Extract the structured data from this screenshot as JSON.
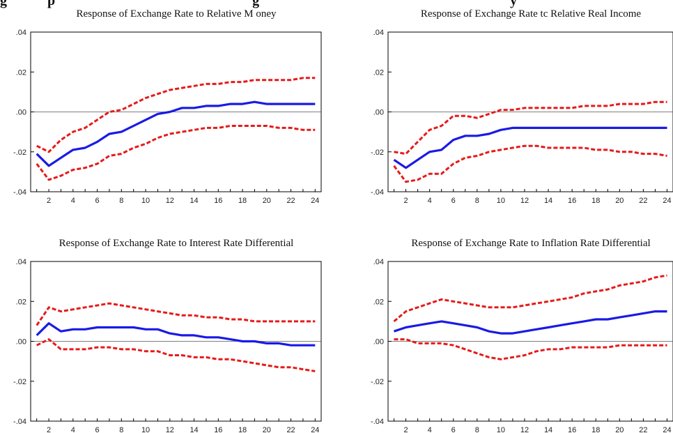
{
  "header": {
    "visible_fragment_left": "g",
    "visible_fragment_mid1": "p",
    "visible_fragment_mid2": "g",
    "visible_fragment_right": "y"
  },
  "chart_data": [
    {
      "type": "line",
      "title": "Response of Exchange Rate to Relative M oney",
      "x": [
        1,
        2,
        3,
        4,
        5,
        6,
        7,
        8,
        9,
        10,
        11,
        12,
        13,
        14,
        15,
        16,
        17,
        18,
        19,
        20,
        21,
        22,
        23,
        24
      ],
      "xticks": [
        2,
        4,
        6,
        8,
        10,
        12,
        14,
        16,
        18,
        20,
        22,
        24
      ],
      "ylim": [
        -0.04,
        0.04
      ],
      "yticks": [
        ".04",
        ".02",
        ".00",
        "-.02",
        "-.04"
      ],
      "series": [
        {
          "role": "response",
          "color": "#1a1ae6",
          "style": "solid",
          "values": [
            -0.021,
            -0.027,
            -0.023,
            -0.019,
            -0.018,
            -0.015,
            -0.011,
            -0.01,
            -0.007,
            -0.004,
            -0.001,
            0.0,
            0.002,
            0.002,
            0.003,
            0.003,
            0.004,
            0.004,
            0.005,
            0.004,
            0.004,
            0.004,
            0.004,
            0.004
          ]
        },
        {
          "role": "upper",
          "color": "#e61a1a",
          "style": "dashed",
          "values": [
            -0.017,
            -0.02,
            -0.014,
            -0.01,
            -0.008,
            -0.004,
            0.0,
            0.001,
            0.004,
            0.007,
            0.009,
            0.011,
            0.012,
            0.013,
            0.014,
            0.014,
            0.015,
            0.015,
            0.016,
            0.016,
            0.016,
            0.016,
            0.017,
            0.017
          ]
        },
        {
          "role": "lower",
          "color": "#e61a1a",
          "style": "dashed",
          "values": [
            -0.026,
            -0.034,
            -0.032,
            -0.029,
            -0.028,
            -0.026,
            -0.022,
            -0.021,
            -0.018,
            -0.016,
            -0.013,
            -0.011,
            -0.01,
            -0.009,
            -0.008,
            -0.008,
            -0.007,
            -0.007,
            -0.007,
            -0.007,
            -0.008,
            -0.008,
            -0.009,
            -0.009
          ]
        }
      ]
    },
    {
      "type": "line",
      "title": "Response of Exchange Rate tc Relative Real Income",
      "x": [
        1,
        2,
        3,
        4,
        5,
        6,
        7,
        8,
        9,
        10,
        11,
        12,
        13,
        14,
        15,
        16,
        17,
        18,
        19,
        20,
        21,
        22,
        23,
        24
      ],
      "xticks": [
        2,
        4,
        6,
        8,
        10,
        12,
        14,
        16,
        18,
        20,
        22,
        24
      ],
      "ylim": [
        -0.04,
        0.04
      ],
      "yticks": [
        ".04",
        ".02",
        ".00",
        "-.02",
        "-.04"
      ],
      "series": [
        {
          "role": "response",
          "color": "#1a1ae6",
          "style": "solid",
          "values": [
            -0.024,
            -0.028,
            -0.024,
            -0.02,
            -0.019,
            -0.014,
            -0.012,
            -0.012,
            -0.011,
            -0.009,
            -0.008,
            -0.008,
            -0.008,
            -0.008,
            -0.008,
            -0.008,
            -0.008,
            -0.008,
            -0.008,
            -0.008,
            -0.008,
            -0.008,
            -0.008,
            -0.008
          ]
        },
        {
          "role": "upper",
          "color": "#e61a1a",
          "style": "dashed",
          "values": [
            -0.02,
            -0.021,
            -0.015,
            -0.009,
            -0.007,
            -0.002,
            -0.002,
            -0.003,
            -0.001,
            0.001,
            0.001,
            0.002,
            0.002,
            0.002,
            0.002,
            0.002,
            0.003,
            0.003,
            0.003,
            0.004,
            0.004,
            0.004,
            0.005,
            0.005
          ]
        },
        {
          "role": "lower",
          "color": "#e61a1a",
          "style": "dashed",
          "values": [
            -0.027,
            -0.035,
            -0.034,
            -0.031,
            -0.031,
            -0.026,
            -0.023,
            -0.022,
            -0.02,
            -0.019,
            -0.018,
            -0.017,
            -0.017,
            -0.018,
            -0.018,
            -0.018,
            -0.018,
            -0.019,
            -0.019,
            -0.02,
            -0.02,
            -0.021,
            -0.021,
            -0.022
          ]
        }
      ]
    },
    {
      "type": "line",
      "title": "Response of Exchange Rate to Interest Rate Differential",
      "x": [
        1,
        2,
        3,
        4,
        5,
        6,
        7,
        8,
        9,
        10,
        11,
        12,
        13,
        14,
        15,
        16,
        17,
        18,
        19,
        20,
        21,
        22,
        23,
        24
      ],
      "xticks": [
        2,
        4,
        6,
        8,
        10,
        12,
        14,
        16,
        18,
        20,
        22,
        24
      ],
      "ylim": [
        -0.04,
        0.04
      ],
      "yticks": [
        ".04",
        ".02",
        ".00",
        "-.02",
        "-.04"
      ],
      "series": [
        {
          "role": "response",
          "color": "#1a1ae6",
          "style": "solid",
          "values": [
            0.003,
            0.009,
            0.005,
            0.006,
            0.006,
            0.007,
            0.007,
            0.007,
            0.007,
            0.006,
            0.006,
            0.004,
            0.003,
            0.003,
            0.002,
            0.002,
            0.001,
            0.0,
            0.0,
            -0.001,
            -0.001,
            -0.002,
            -0.002,
            -0.002
          ]
        },
        {
          "role": "upper",
          "color": "#e61a1a",
          "style": "dashed",
          "values": [
            0.008,
            0.017,
            0.015,
            0.016,
            0.017,
            0.018,
            0.019,
            0.018,
            0.017,
            0.016,
            0.015,
            0.014,
            0.013,
            0.013,
            0.012,
            0.012,
            0.011,
            0.011,
            0.01,
            0.01,
            0.01,
            0.01,
            0.01,
            0.01
          ]
        },
        {
          "role": "lower",
          "color": "#e61a1a",
          "style": "dashed",
          "values": [
            -0.002,
            0.001,
            -0.004,
            -0.004,
            -0.004,
            -0.003,
            -0.003,
            -0.004,
            -0.004,
            -0.005,
            -0.005,
            -0.007,
            -0.007,
            -0.008,
            -0.008,
            -0.009,
            -0.009,
            -0.01,
            -0.011,
            -0.012,
            -0.013,
            -0.013,
            -0.014,
            -0.015
          ]
        }
      ]
    },
    {
      "type": "line",
      "title": "Response of Exchange Rate to Inflation Rate Differential",
      "x": [
        1,
        2,
        3,
        4,
        5,
        6,
        7,
        8,
        9,
        10,
        11,
        12,
        13,
        14,
        15,
        16,
        17,
        18,
        19,
        20,
        21,
        22,
        23,
        24
      ],
      "xticks": [
        2,
        4,
        6,
        8,
        10,
        12,
        14,
        16,
        18,
        20,
        22,
        24
      ],
      "ylim": [
        -0.04,
        0.04
      ],
      "yticks": [
        ".04",
        ".02",
        ".00",
        "-.02",
        "-.04"
      ],
      "series": [
        {
          "role": "response",
          "color": "#1a1ae6",
          "style": "solid",
          "values": [
            0.005,
            0.007,
            0.008,
            0.009,
            0.01,
            0.009,
            0.008,
            0.007,
            0.005,
            0.004,
            0.004,
            0.005,
            0.006,
            0.007,
            0.008,
            0.009,
            0.01,
            0.011,
            0.011,
            0.012,
            0.013,
            0.014,
            0.015,
            0.015
          ]
        },
        {
          "role": "upper",
          "color": "#e61a1a",
          "style": "dashed",
          "values": [
            0.01,
            0.015,
            0.017,
            0.019,
            0.021,
            0.02,
            0.019,
            0.018,
            0.017,
            0.017,
            0.017,
            0.018,
            0.019,
            0.02,
            0.021,
            0.022,
            0.024,
            0.025,
            0.026,
            0.028,
            0.029,
            0.03,
            0.032,
            0.033
          ]
        },
        {
          "role": "lower",
          "color": "#e61a1a",
          "style": "dashed",
          "values": [
            0.001,
            0.001,
            -0.001,
            -0.001,
            -0.001,
            -0.002,
            -0.004,
            -0.006,
            -0.008,
            -0.009,
            -0.008,
            -0.007,
            -0.005,
            -0.004,
            -0.004,
            -0.003,
            -0.003,
            -0.003,
            -0.003,
            -0.002,
            -0.002,
            -0.002,
            -0.002,
            -0.002
          ]
        }
      ]
    }
  ]
}
